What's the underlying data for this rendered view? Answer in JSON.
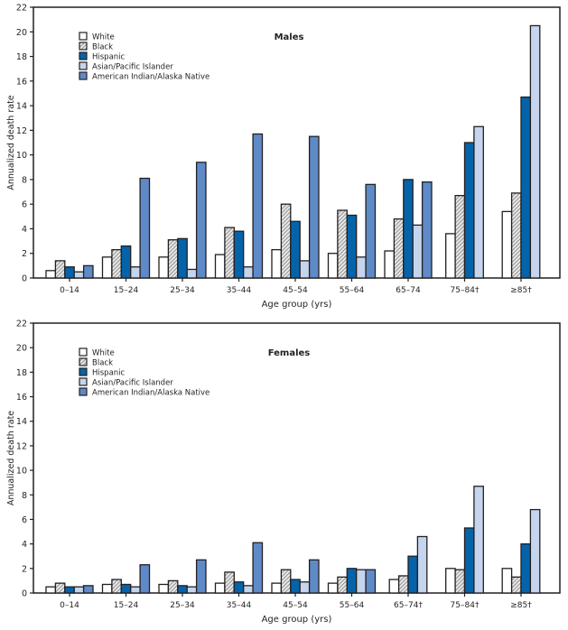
{
  "chart_data": [
    {
      "type": "bar",
      "title": "Males",
      "xlabel": "Age group (yrs)",
      "ylabel": "Annualized death rate",
      "ylim": [
        0,
        22
      ],
      "yticks": [
        0,
        2,
        4,
        6,
        8,
        10,
        12,
        14,
        16,
        18,
        20,
        22
      ],
      "grid": false,
      "legend_placement": "top-left",
      "categories": [
        "0–14",
        "15–24",
        "25–34",
        "35–44",
        "45–54",
        "55–64",
        "65–74",
        "75–84†",
        "≥85†"
      ],
      "series": [
        {
          "name": "White",
          "values": [
            0.6,
            1.7,
            1.7,
            1.9,
            2.3,
            2.0,
            2.2,
            3.6,
            5.4
          ]
        },
        {
          "name": "Black",
          "values": [
            1.4,
            2.3,
            3.1,
            4.1,
            6.0,
            5.5,
            4.8,
            6.7,
            6.9
          ]
        },
        {
          "name": "Hispanic",
          "values": [
            0.9,
            2.6,
            3.2,
            3.8,
            4.6,
            5.1,
            8.0,
            11.0,
            14.7
          ]
        },
        {
          "name": "Asian/Pacific Islander",
          "values": [
            0.5,
            0.9,
            0.7,
            0.9,
            1.4,
            1.7,
            4.3,
            12.3,
            20.5
          ]
        },
        {
          "name": "American Indian/Alaska Native",
          "values": [
            1.0,
            8.1,
            9.4,
            11.7,
            11.5,
            7.6,
            7.8,
            null,
            null
          ]
        }
      ]
    },
    {
      "type": "bar",
      "title": "Females",
      "xlabel": "Age group (yrs)",
      "ylabel": "Annualized death rate",
      "ylim": [
        0,
        22
      ],
      "yticks": [
        0,
        2,
        4,
        6,
        8,
        10,
        12,
        14,
        16,
        18,
        20,
        22
      ],
      "grid": false,
      "legend_placement": "top-left",
      "categories": [
        "0–14",
        "15–24",
        "25–34",
        "35–44",
        "45–54",
        "55–64",
        "65–74†",
        "75–84†",
        "≥85†"
      ],
      "series": [
        {
          "name": "White",
          "values": [
            0.5,
            0.7,
            0.7,
            0.8,
            0.8,
            0.8,
            1.1,
            2.0,
            2.0
          ]
        },
        {
          "name": "Black",
          "values": [
            0.8,
            1.1,
            1.0,
            1.7,
            1.9,
            1.3,
            1.4,
            1.9,
            1.3
          ]
        },
        {
          "name": "Hispanic",
          "values": [
            0.5,
            0.7,
            0.6,
            0.9,
            1.1,
            2.0,
            3.0,
            5.3,
            4.0
          ]
        },
        {
          "name": "Asian/Pacific Islander",
          "values": [
            0.5,
            0.5,
            0.5,
            0.6,
            0.9,
            1.9,
            4.6,
            8.7,
            6.8
          ]
        },
        {
          "name": "American Indian/Alaska Native",
          "values": [
            0.6,
            2.3,
            2.7,
            4.1,
            2.7,
            1.9,
            null,
            null,
            null
          ]
        }
      ]
    }
  ],
  "series_fills": [
    "#ffffff",
    "hatch",
    "#0563a9",
    "#c5d5ee",
    "#5f8ac8"
  ]
}
